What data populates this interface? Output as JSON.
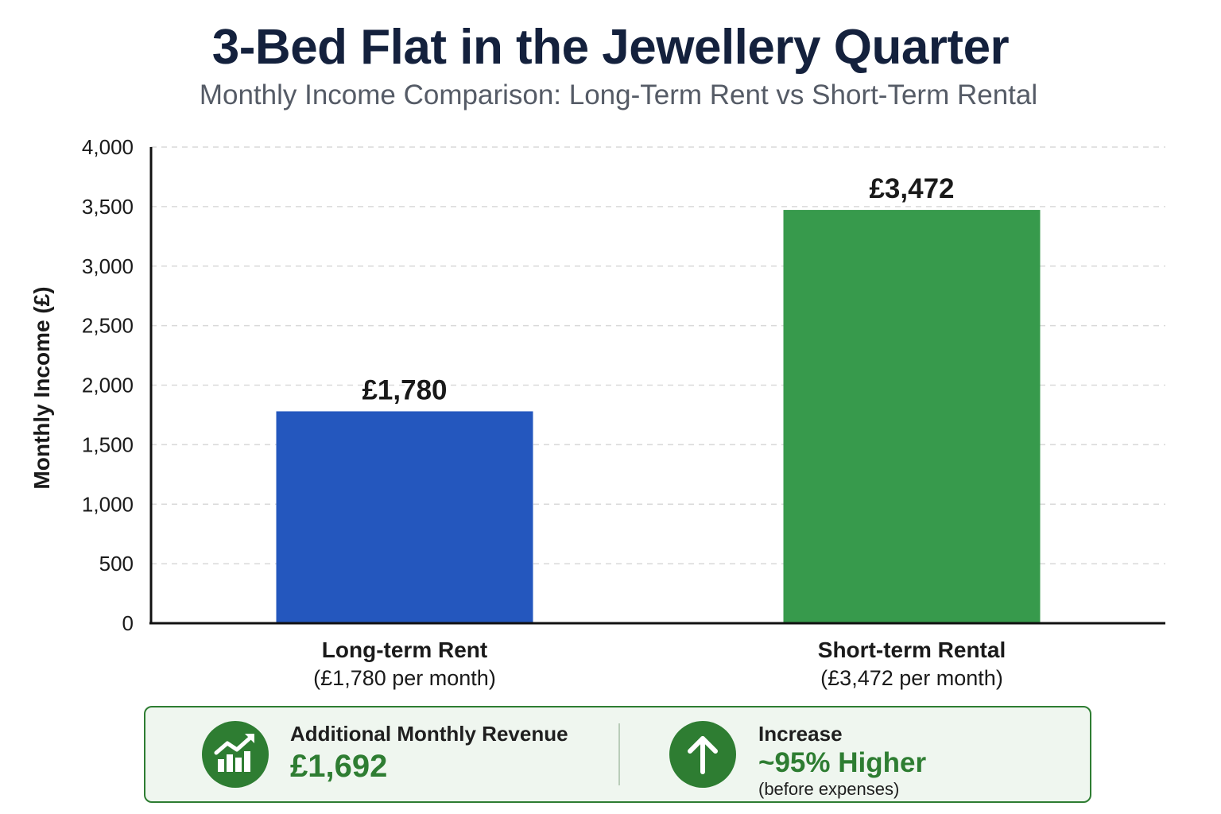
{
  "header": {
    "title": "3-Bed Flat in the Jewellery Quarter",
    "subtitle": "Monthly Income Comparison: Long-Term Rent vs Short-Term Rental"
  },
  "chart_data": {
    "type": "bar",
    "title": "3-Bed Flat in the Jewellery Quarter",
    "subtitle": "Monthly Income Comparison: Long-Term Rent vs Short-Term Rental",
    "xlabel": "",
    "ylabel": "Monthly Income (£)",
    "ylim": [
      0,
      4000
    ],
    "yticks": [
      "0",
      "500",
      "1,000",
      "1,500",
      "2,000",
      "2,500",
      "3,000",
      "3,500",
      "4,000"
    ],
    "grid": true,
    "categories": [
      "Long-term Rent",
      "Short-term Rental"
    ],
    "category_sublabels": [
      "(£1,780 per month)",
      "(£3,472 per month)"
    ],
    "values": [
      1780,
      3472
    ],
    "value_labels": [
      "£1,780",
      "£3,472"
    ],
    "colors": [
      "#2457be",
      "#379a4c"
    ]
  },
  "summary": {
    "revenue_label": "Additional Monthly Revenue",
    "revenue_value": "£1,692",
    "revenue_icon": "trending-up-chart-icon",
    "increase_label": "Increase",
    "increase_value": "~95% Higher",
    "increase_note": "(before expenses)",
    "increase_icon": "arrow-up-icon",
    "accent_color": "#2e7d32"
  }
}
